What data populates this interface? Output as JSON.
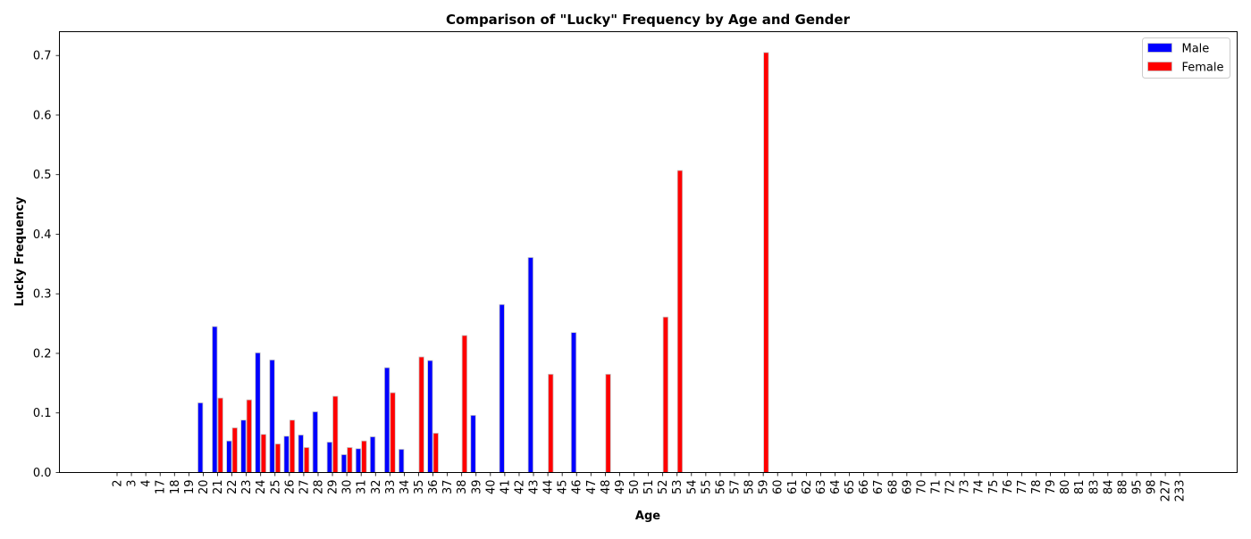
{
  "chart_data": {
    "type": "bar",
    "title": "Comparison of \"Lucky\" Frequency by Age and Gender",
    "xlabel": "Age",
    "ylabel": "Lucky Frequency",
    "ylim": [
      0,
      0.74
    ],
    "yticks": [
      0.0,
      0.1,
      0.2,
      0.3,
      0.4,
      0.5,
      0.6,
      0.7
    ],
    "ytick_labels": [
      "0.0",
      "0.1",
      "0.2",
      "0.3",
      "0.4",
      "0.5",
      "0.6",
      "0.7"
    ],
    "grid": false,
    "legend_position": "top-right",
    "categories": [
      "2",
      "3",
      "4",
      "17",
      "18",
      "19",
      "20",
      "21",
      "22",
      "23",
      "24",
      "25",
      "26",
      "27",
      "28",
      "29",
      "30",
      "31",
      "32",
      "33",
      "34",
      "35",
      "36",
      "37",
      "38",
      "39",
      "40",
      "41",
      "42",
      "43",
      "44",
      "45",
      "46",
      "47",
      "48",
      "49",
      "50",
      "51",
      "52",
      "53",
      "54",
      "55",
      "56",
      "57",
      "58",
      "59",
      "60",
      "61",
      "62",
      "63",
      "64",
      "65",
      "66",
      "67",
      "68",
      "69",
      "70",
      "71",
      "72",
      "73",
      "74",
      "75",
      "76",
      "77",
      "78",
      "79",
      "80",
      "81",
      "83",
      "84",
      "88",
      "95",
      "98",
      "227",
      "233"
    ],
    "series": [
      {
        "name": "Male",
        "color": "#0000ff",
        "values": [
          0,
          0,
          0,
          0,
          0,
          0,
          0.117,
          0.245,
          0.053,
          0.088,
          0.201,
          0.189,
          0.061,
          0.063,
          0.102,
          0.051,
          0.03,
          0.04,
          0.06,
          0.176,
          0.039,
          0,
          0.188,
          0,
          0,
          0.096,
          0,
          0.282,
          0,
          0.361,
          0,
          0,
          0.235,
          0,
          0,
          0,
          0,
          0,
          0,
          0,
          0,
          0,
          0,
          0,
          0,
          0,
          0,
          0,
          0,
          0,
          0,
          0,
          0,
          0,
          0,
          0,
          0,
          0,
          0,
          0,
          0,
          0,
          0,
          0,
          0,
          0,
          0,
          0,
          0,
          0,
          0,
          0,
          0,
          0,
          0
        ]
      },
      {
        "name": "Female",
        "color": "#ff0000",
        "values": [
          0,
          0,
          0,
          0,
          0,
          0,
          0,
          0.125,
          0.075,
          0.122,
          0.064,
          0.048,
          0.088,
          0.042,
          0,
          0.128,
          0.042,
          0.053,
          0,
          0.134,
          0,
          0.194,
          0.066,
          0,
          0.23,
          0,
          0,
          0,
          0,
          0,
          0.165,
          0,
          0,
          0,
          0.165,
          0,
          0,
          0,
          0.261,
          0.507,
          0,
          0,
          0,
          0,
          0,
          0.705,
          0,
          0,
          0,
          0,
          0,
          0,
          0,
          0,
          0,
          0,
          0,
          0,
          0,
          0,
          0,
          0,
          0,
          0,
          0,
          0,
          0,
          0,
          0,
          0,
          0,
          0,
          0,
          0,
          0
        ]
      }
    ]
  }
}
